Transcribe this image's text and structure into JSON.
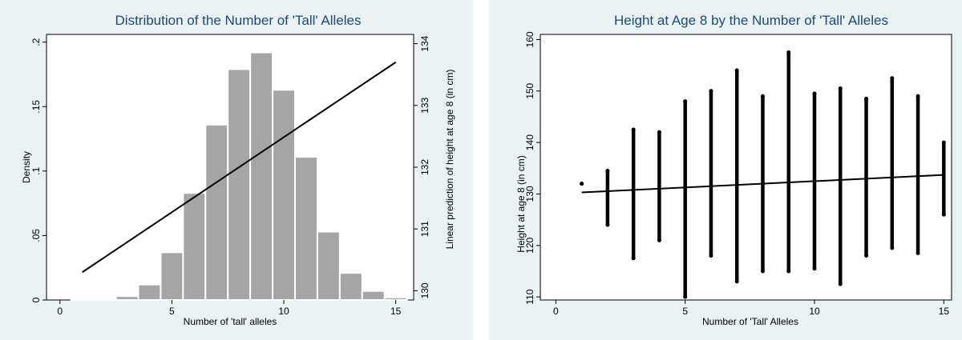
{
  "chart_data": [
    {
      "type": "bar",
      "title": "Distribution of the Number of 'Tall' Alleles",
      "xlabel": "Number of 'tall' alleles",
      "ylabel": "Density",
      "y2label": "Linear prediction of height at age 8  (in cm)",
      "xlim": [
        -0.6,
        15.8
      ],
      "ylim": [
        0,
        0.206
      ],
      "y2lim": [
        129.85,
        134.15
      ],
      "xticks": [
        0,
        5,
        10,
        15
      ],
      "yticks": [
        0,
        0.05,
        0.1,
        0.15,
        0.2
      ],
      "ytick_labels": [
        "0",
        ".05",
        ".1",
        ".15",
        ".2"
      ],
      "y2ticks": [
        130,
        131,
        132,
        133,
        134
      ],
      "x": [
        1,
        2,
        3,
        4,
        5,
        6,
        7,
        8,
        9,
        10,
        11,
        12,
        13,
        14,
        15
      ],
      "values": [
        0.0005,
        0.001,
        0.003,
        0.012,
        0.037,
        0.083,
        0.136,
        0.179,
        0.192,
        0.163,
        0.111,
        0.053,
        0.021,
        0.007,
        0.002
      ],
      "line": {
        "x": [
          1,
          15
        ],
        "y": [
          130.3,
          133.7
        ]
      },
      "bar_color": "#a5a5a5",
      "line_color": "#000000",
      "grid": false
    },
    {
      "type": "scatter",
      "title": "Height at Age 8 by the Number of 'Tall' Alleles",
      "xlabel": "Number of 'Tall' Alleles",
      "ylabel": "Height at age 8 (in cm)",
      "xlim": [
        -0.6,
        15.3
      ],
      "ylim": [
        109.4,
        161
      ],
      "xticks": [
        0,
        5,
        10,
        15
      ],
      "yticks": [
        110,
        120,
        130,
        140,
        150,
        160
      ],
      "columns": [
        {
          "x": 1,
          "min": 132,
          "max": 132
        },
        {
          "x": 2,
          "min": 124,
          "max": 134.5
        },
        {
          "x": 3,
          "min": 117.5,
          "max": 142.5
        },
        {
          "x": 4,
          "min": 121,
          "max": 142
        },
        {
          "x": 5,
          "min": 110,
          "max": 148
        },
        {
          "x": 6,
          "min": 118,
          "max": 150
        },
        {
          "x": 7,
          "min": 113,
          "max": 154
        },
        {
          "x": 8,
          "min": 115,
          "max": 149
        },
        {
          "x": 9,
          "min": 115,
          "max": 157.5
        },
        {
          "x": 10,
          "min": 115.5,
          "max": 149.5
        },
        {
          "x": 11,
          "min": 112.5,
          "max": 150.5
        },
        {
          "x": 12,
          "min": 118,
          "max": 148.5
        },
        {
          "x": 13,
          "min": 119.5,
          "max": 152.5
        },
        {
          "x": 14,
          "min": 118.5,
          "max": 149
        },
        {
          "x": 15,
          "min": 126,
          "max": 140
        }
      ],
      "line": {
        "x": [
          1,
          15
        ],
        "y": [
          130.3,
          133.7
        ]
      },
      "point_color": "#000000",
      "line_color": "#000000",
      "grid": false
    }
  ]
}
